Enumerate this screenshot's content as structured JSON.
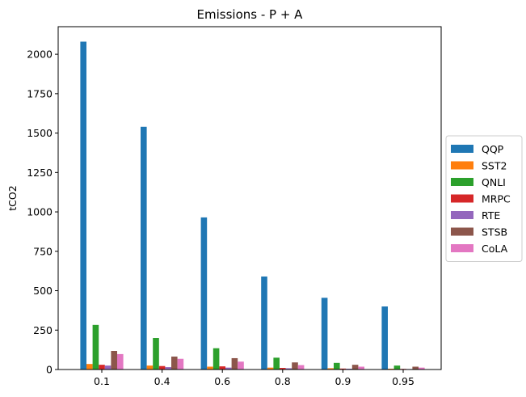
{
  "chart_data": {
    "type": "bar",
    "title": "Emissions - P + A",
    "xlabel": "",
    "ylabel": "tCO2",
    "categories": [
      "0.1",
      "0.4",
      "0.6",
      "0.8",
      "0.9",
      "0.95"
    ],
    "ylim": [
      0,
      2175
    ],
    "yticks": [
      0,
      250,
      500,
      750,
      1000,
      1250,
      1500,
      1750,
      2000
    ],
    "grid": false,
    "legend_position": "center-right outside",
    "series": [
      {
        "name": "QQP",
        "color": "#1f77b4",
        "values": [
          2080,
          1540,
          965,
          590,
          455,
          400
        ]
      },
      {
        "name": "SST2",
        "color": "#ff7f0e",
        "values": [
          35,
          25,
          18,
          12,
          8,
          5
        ]
      },
      {
        "name": "QNLI",
        "color": "#2ca02c",
        "values": [
          283,
          200,
          135,
          75,
          42,
          25
        ]
      },
      {
        "name": "MRPC",
        "color": "#d62728",
        "values": [
          30,
          22,
          20,
          10,
          6,
          4
        ]
      },
      {
        "name": "RTE",
        "color": "#9467bd",
        "values": [
          25,
          15,
          12,
          8,
          5,
          3
        ]
      },
      {
        "name": "STSB",
        "color": "#8c564b",
        "values": [
          118,
          82,
          72,
          45,
          30,
          18
        ]
      },
      {
        "name": "CoLA",
        "color": "#e377c2",
        "values": [
          98,
          68,
          50,
          28,
          18,
          12
        ]
      }
    ]
  }
}
